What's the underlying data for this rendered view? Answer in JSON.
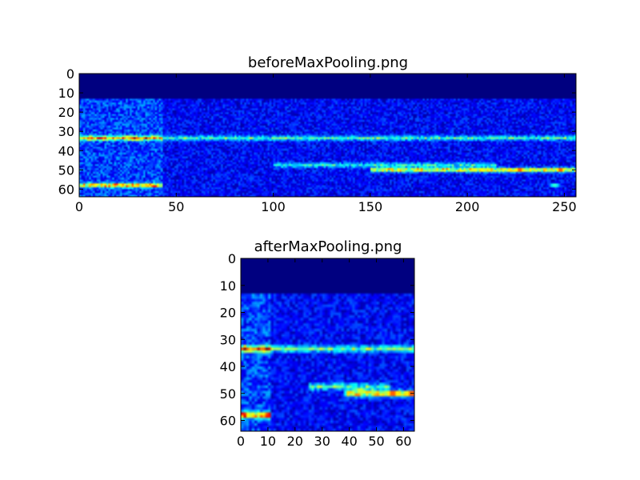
{
  "chart_data": [
    {
      "type": "heatmap",
      "title": "beforeMaxPooling.png",
      "xlabel": "",
      "ylabel": "",
      "xlim": [
        0,
        256
      ],
      "ylim": [
        64,
        0
      ],
      "x_ticks": [
        0,
        50,
        100,
        150,
        200,
        250
      ],
      "y_ticks": [
        0,
        10,
        20,
        30,
        40,
        50,
        60
      ],
      "colormap": "jet",
      "grid": false,
      "features": {
        "empty_rows_until": 13,
        "onset_col": 43,
        "bands": [
          {
            "row": 33.5,
            "from": 0,
            "to": 43,
            "intensity": 0.6
          },
          {
            "row": 33.5,
            "from": 43,
            "to": 256,
            "intensity": 0.35
          },
          {
            "row": 58,
            "from": 0,
            "to": 43,
            "intensity": 0.6
          },
          {
            "row": 50,
            "from": 150,
            "to": 256,
            "intensity": 0.55
          },
          {
            "row": 47.5,
            "from": 100,
            "to": 215,
            "intensity": 0.3
          }
        ],
        "hotspots": [
          {
            "col": 7,
            "row": 33.5,
            "value": 0.72
          },
          {
            "col": 35,
            "row": 33.5,
            "value": 0.75
          },
          {
            "col": 8,
            "row": 58,
            "value": 0.7
          },
          {
            "col": 33,
            "row": 58,
            "value": 0.7
          },
          {
            "col": 165,
            "row": 50,
            "value": 0.65
          },
          {
            "col": 227,
            "row": 50,
            "value": 0.95
          },
          {
            "col": 248,
            "row": 50,
            "value": 0.95
          },
          {
            "col": 245,
            "row": 58,
            "value": 0.5
          }
        ]
      }
    },
    {
      "type": "heatmap",
      "title": "afterMaxPooling.png",
      "xlabel": "",
      "ylabel": "",
      "xlim": [
        0,
        64
      ],
      "ylim": [
        64,
        0
      ],
      "x_ticks": [
        0,
        10,
        20,
        30,
        40,
        50,
        60
      ],
      "y_ticks": [
        0,
        10,
        20,
        30,
        40,
        50,
        60
      ],
      "colormap": "jet",
      "grid": false,
      "features": {
        "empty_rows_until": 13,
        "onset_col": 11,
        "bands": [
          {
            "row": 33.5,
            "from": 0,
            "to": 11,
            "intensity": 0.7
          },
          {
            "row": 33.5,
            "from": 11,
            "to": 64,
            "intensity": 0.4
          },
          {
            "row": 58,
            "from": 0,
            "to": 11,
            "intensity": 0.65
          },
          {
            "row": 50,
            "from": 38,
            "to": 64,
            "intensity": 0.6
          },
          {
            "row": 47.5,
            "from": 25,
            "to": 55,
            "intensity": 0.35
          }
        ],
        "hotspots": [
          {
            "col": 2,
            "row": 33.5,
            "value": 0.8
          },
          {
            "col": 9,
            "row": 33.5,
            "value": 0.8
          },
          {
            "col": 2,
            "row": 58,
            "value": 0.75
          },
          {
            "col": 8,
            "row": 58,
            "value": 0.75
          },
          {
            "col": 44,
            "row": 49,
            "value": 0.7
          },
          {
            "col": 56,
            "row": 50,
            "value": 0.95
          },
          {
            "col": 63,
            "row": 50,
            "value": 0.95
          }
        ]
      }
    }
  ]
}
